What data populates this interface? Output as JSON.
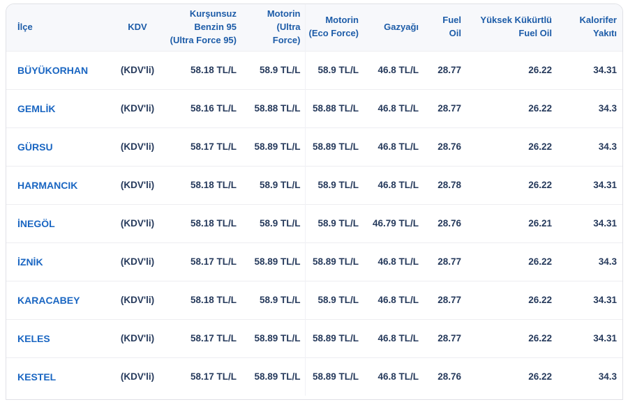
{
  "colors": {
    "header_text": "#1d5ca8",
    "district_link": "#1a66c2",
    "value_text": "#263a5c",
    "header_bg": "#f7f8fb",
    "card_border": "#e0e1e6",
    "row_divider": "#ededf1"
  },
  "table": {
    "columns": [
      {
        "key": "ilce",
        "label": "İlçe"
      },
      {
        "key": "kdv",
        "label": "KDV"
      },
      {
        "key": "benzin95",
        "label": "Kurşunsuz Benzin 95 (Ultra Force 95)"
      },
      {
        "key": "motorin_ultra",
        "label": "Motorin (Ultra Force)"
      },
      {
        "key": "motorin_eco",
        "label": "Motorin (Eco Force)"
      },
      {
        "key": "gazyagi",
        "label": "Gazyağı"
      },
      {
        "key": "fuel_oil",
        "label": "Fuel Oil"
      },
      {
        "key": "yuksek_fuel",
        "label": "Yüksek Kükürtlü Fuel Oil"
      },
      {
        "key": "kalorifer",
        "label": "Kalorifer Yakıtı"
      }
    ],
    "rows": [
      {
        "ilce": "BÜYÜKORHAN",
        "kdv": "(KDV'li)",
        "benzin95": "58.18 TL/L",
        "motorin_ultra": "58.9 TL/L",
        "motorin_eco": "58.9 TL/L",
        "gazyagi": "46.8 TL/L",
        "fuel_oil": "28.77",
        "yuksek_fuel": "26.22",
        "kalorifer": "34.31"
      },
      {
        "ilce": "GEMLİK",
        "kdv": "(KDV'li)",
        "benzin95": "58.16 TL/L",
        "motorin_ultra": "58.88 TL/L",
        "motorin_eco": "58.88 TL/L",
        "gazyagi": "46.8 TL/L",
        "fuel_oil": "28.77",
        "yuksek_fuel": "26.22",
        "kalorifer": "34.3"
      },
      {
        "ilce": "GÜRSU",
        "kdv": "(KDV'li)",
        "benzin95": "58.17 TL/L",
        "motorin_ultra": "58.89 TL/L",
        "motorin_eco": "58.89 TL/L",
        "gazyagi": "46.8 TL/L",
        "fuel_oil": "28.76",
        "yuksek_fuel": "26.22",
        "kalorifer": "34.3"
      },
      {
        "ilce": "HARMANCIK",
        "kdv": "(KDV'li)",
        "benzin95": "58.18 TL/L",
        "motorin_ultra": "58.9 TL/L",
        "motorin_eco": "58.9 TL/L",
        "gazyagi": "46.8 TL/L",
        "fuel_oil": "28.78",
        "yuksek_fuel": "26.22",
        "kalorifer": "34.31"
      },
      {
        "ilce": "İNEGÖL",
        "kdv": "(KDV'li)",
        "benzin95": "58.18 TL/L",
        "motorin_ultra": "58.9 TL/L",
        "motorin_eco": "58.9 TL/L",
        "gazyagi": "46.79 TL/L",
        "fuel_oil": "28.76",
        "yuksek_fuel": "26.21",
        "kalorifer": "34.31"
      },
      {
        "ilce": "İZNİK",
        "kdv": "(KDV'li)",
        "benzin95": "58.17 TL/L",
        "motorin_ultra": "58.89 TL/L",
        "motorin_eco": "58.89 TL/L",
        "gazyagi": "46.8 TL/L",
        "fuel_oil": "28.77",
        "yuksek_fuel": "26.22",
        "kalorifer": "34.3"
      },
      {
        "ilce": "KARACABEY",
        "kdv": "(KDV'li)",
        "benzin95": "58.18 TL/L",
        "motorin_ultra": "58.9 TL/L",
        "motorin_eco": "58.9 TL/L",
        "gazyagi": "46.8 TL/L",
        "fuel_oil": "28.77",
        "yuksek_fuel": "26.22",
        "kalorifer": "34.31"
      },
      {
        "ilce": "KELES",
        "kdv": "(KDV'li)",
        "benzin95": "58.17 TL/L",
        "motorin_ultra": "58.89 TL/L",
        "motorin_eco": "58.89 TL/L",
        "gazyagi": "46.8 TL/L",
        "fuel_oil": "28.77",
        "yuksek_fuel": "26.22",
        "kalorifer": "34.31"
      },
      {
        "ilce": "KESTEL",
        "kdv": "(KDV'li)",
        "benzin95": "58.17 TL/L",
        "motorin_ultra": "58.89 TL/L",
        "motorin_eco": "58.89 TL/L",
        "gazyagi": "46.8 TL/L",
        "fuel_oil": "28.76",
        "yuksek_fuel": "26.22",
        "kalorifer": "34.3"
      }
    ]
  }
}
